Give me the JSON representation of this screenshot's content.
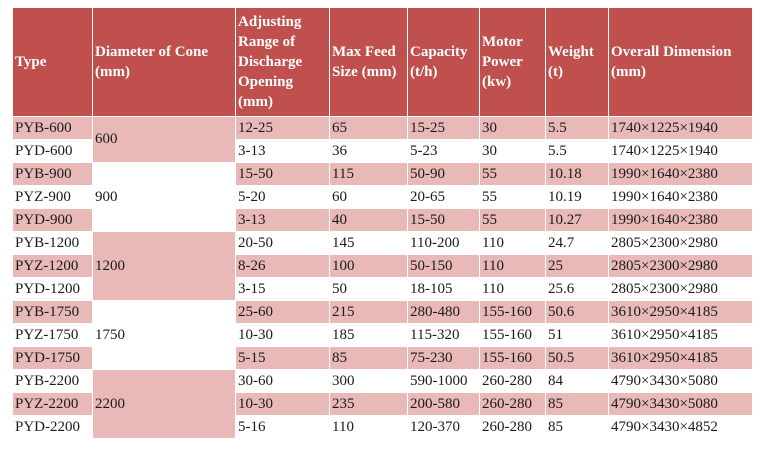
{
  "headers": {
    "type": "Type",
    "diameter": "Diameter of Cone (mm)",
    "adjusting": "Adjusting Range of Discharge Opening (mm)",
    "feed": "Max Feed Size (mm)",
    "capacity": "Capacity (t/h)",
    "motor": "Motor Power (kw)",
    "weight": "Weight (t)",
    "dimension": "Overall Dimension (mm)"
  },
  "groups": [
    {
      "diameter": "600",
      "rows": [
        {
          "type": "PYB-600",
          "adjusting": "12-25",
          "feed": "65",
          "capacity": "15-25",
          "motor": "30",
          "weight": "5.5",
          "dimension": "1740×1225×1940"
        },
        {
          "type": "PYD-600",
          "adjusting": "3-13",
          "feed": "36",
          "capacity": "5-23",
          "motor": "30",
          "weight": "5.5",
          "dimension": "1740×1225×1940"
        }
      ]
    },
    {
      "diameter": "900",
      "rows": [
        {
          "type": "PYB-900",
          "adjusting": "15-50",
          "feed": "115",
          "capacity": "50-90",
          "motor": "55",
          "weight": "10.18",
          "dimension": "1990×1640×2380"
        },
        {
          "type": "PYZ-900",
          "adjusting": "5-20",
          "feed": "60",
          "capacity": "20-65",
          "motor": "55",
          "weight": "10.19",
          "dimension": "1990×1640×2380"
        },
        {
          "type": "PYD-900",
          "adjusting": "3-13",
          "feed": "40",
          "capacity": "15-50",
          "motor": "55",
          "weight": "10.27",
          "dimension": "1990×1640×2380"
        }
      ]
    },
    {
      "diameter": "1200",
      "rows": [
        {
          "type": "PYB-1200",
          "adjusting": "20-50",
          "feed": "145",
          "capacity": "110-200",
          "motor": "110",
          "weight": "24.7",
          "dimension": "2805×2300×2980"
        },
        {
          "type": "PYZ-1200",
          "adjusting": "8-26",
          "feed": "100",
          "capacity": "50-150",
          "motor": "110",
          "weight": "25",
          "dimension": "2805×2300×2980"
        },
        {
          "type": "PYD-1200",
          "adjusting": "3-15",
          "feed": "50",
          "capacity": "18-105",
          "motor": "110",
          "weight": "25.6",
          "dimension": "2805×2300×2980"
        }
      ]
    },
    {
      "diameter": "1750",
      "rows": [
        {
          "type": "PYB-1750",
          "adjusting": "25-60",
          "feed": "215",
          "capacity": "280-480",
          "motor": "155-160",
          "weight": "50.6",
          "dimension": "3610×2950×4185"
        },
        {
          "type": "PYZ-1750",
          "adjusting": "10-30",
          "feed": "185",
          "capacity": "115-320",
          "motor": "155-160",
          "weight": "51",
          "dimension": "3610×2950×4185"
        },
        {
          "type": "PYD-1750",
          "adjusting": "5-15",
          "feed": "85",
          "capacity": "75-230",
          "motor": "155-160",
          "weight": "50.5",
          "dimension": "3610×2950×4185"
        }
      ]
    },
    {
      "diameter": "2200",
      "rows": [
        {
          "type": "PYB-2200",
          "adjusting": "30-60",
          "feed": "300",
          "capacity": "590-1000",
          "motor": "260-280",
          "weight": "84",
          "dimension": "4790×3430×5080"
        },
        {
          "type": "PYZ-2200",
          "adjusting": "10-30",
          "feed": "235",
          "capacity": "200-580",
          "motor": "260-280",
          "weight": "85",
          "dimension": "4790×3430×5080"
        },
        {
          "type": "PYD-2200",
          "adjusting": "5-16",
          "feed": "110",
          "capacity": "120-370",
          "motor": "260-280",
          "weight": "85",
          "dimension": "4790×3430×4852"
        }
      ]
    }
  ],
  "colors": {
    "header": "#c0504d",
    "band": "#e9b9b8",
    "plain": "#ffffff"
  }
}
